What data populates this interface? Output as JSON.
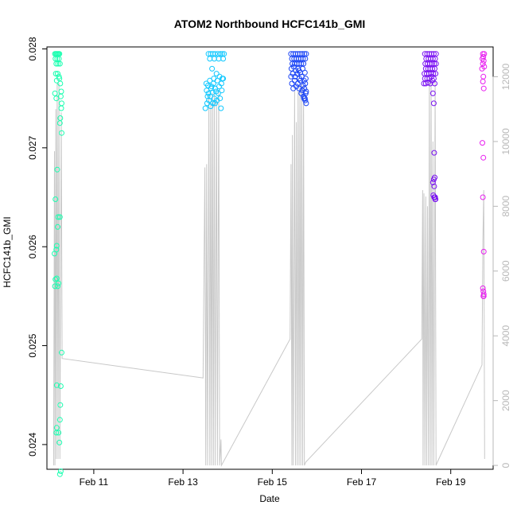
{
  "chart_data": {
    "type": "scatter",
    "title": "ATOM2 Northbound HCFC141b_GMI",
    "xlabel": "Date",
    "ylabel": "HCFC141b_GMI",
    "x_unit": "day of February",
    "xlim": [
      9.95,
      19.95
    ],
    "ylim": [
      0.02375,
      0.02802
    ],
    "y2lim": [
      -120,
      12920
    ],
    "x_ticks": [
      {
        "value": 11,
        "label": "Feb 11"
      },
      {
        "value": 13,
        "label": "Feb 13"
      },
      {
        "value": 15,
        "label": "Feb 15"
      },
      {
        "value": 17,
        "label": "Feb 17"
      },
      {
        "value": 19,
        "label": "Feb 19"
      }
    ],
    "y_ticks": [
      {
        "value": 0.024,
        "label": "0.024"
      },
      {
        "value": 0.025,
        "label": "0.025"
      },
      {
        "value": 0.026,
        "label": "0.026"
      },
      {
        "value": 0.027,
        "label": "0.027"
      },
      {
        "value": 0.028,
        "label": "0.028"
      }
    ],
    "y2_ticks": [
      {
        "value": 0,
        "label": "0"
      },
      {
        "value": 2000,
        "label": "2000"
      },
      {
        "value": 4000,
        "label": "4000"
      },
      {
        "value": 6000,
        "label": "6000"
      },
      {
        "value": 8000,
        "label": "8000"
      },
      {
        "value": 10000,
        "label": "10000"
      },
      {
        "value": 12000,
        "label": "12000"
      }
    ],
    "colors": {
      "flight1": "#1affb0",
      "flight2": "#10c8ff",
      "flight3": "#1a44f5",
      "flight4": "#7a12f2",
      "flight5": "#e81ef0",
      "altitude_line": "#c8c8c8",
      "right_axis": "#b8b8b8"
    },
    "series": [
      {
        "color_key": "flight1",
        "points": [
          [
            10.13,
            0.02795
          ],
          [
            10.15,
            0.02795
          ],
          [
            10.17,
            0.02795
          ],
          [
            10.19,
            0.02795
          ],
          [
            10.21,
            0.02795
          ],
          [
            10.23,
            0.02795
          ],
          [
            10.14,
            0.0279
          ],
          [
            10.18,
            0.0279
          ],
          [
            10.22,
            0.0279
          ],
          [
            10.16,
            0.02785
          ],
          [
            10.2,
            0.02785
          ],
          [
            10.24,
            0.02785
          ],
          [
            10.15,
            0.02775
          ],
          [
            10.19,
            0.02775
          ],
          [
            10.22,
            0.02772
          ],
          [
            10.23,
            0.0277
          ],
          [
            10.17,
            0.02768
          ],
          [
            10.25,
            0.02765
          ],
          [
            10.27,
            0.02757
          ],
          [
            10.13,
            0.02755
          ],
          [
            10.26,
            0.02752
          ],
          [
            10.16,
            0.0275
          ],
          [
            10.28,
            0.02745
          ],
          [
            10.27,
            0.0274
          ],
          [
            10.25,
            0.0273
          ],
          [
            10.24,
            0.02725
          ],
          [
            10.28,
            0.02715
          ],
          [
            10.18,
            0.02678
          ],
          [
            10.14,
            0.02648
          ],
          [
            10.2,
            0.0263
          ],
          [
            10.24,
            0.0263
          ],
          [
            10.19,
            0.0262
          ],
          [
            10.17,
            0.02601
          ],
          [
            10.16,
            0.02597
          ],
          [
            10.12,
            0.02593
          ],
          [
            10.17,
            0.02568
          ],
          [
            10.14,
            0.02567
          ],
          [
            10.21,
            0.02563
          ],
          [
            10.13,
            0.0256
          ],
          [
            10.19,
            0.0256
          ],
          [
            10.28,
            0.02493
          ],
          [
            10.17,
            0.0246
          ],
          [
            10.26,
            0.02459
          ],
          [
            10.25,
            0.0244
          ],
          [
            10.24,
            0.02425
          ],
          [
            10.17,
            0.02417
          ],
          [
            10.16,
            0.02412
          ],
          [
            10.21,
            0.02412
          ],
          [
            10.23,
            0.02402
          ],
          [
            10.26,
            0.02373
          ],
          [
            10.24,
            0.0237
          ]
        ]
      },
      {
        "color_key": "flight2",
        "points": [
          [
            13.57,
            0.02795
          ],
          [
            13.62,
            0.02795
          ],
          [
            13.67,
            0.02795
          ],
          [
            13.72,
            0.02795
          ],
          [
            13.78,
            0.02795
          ],
          [
            13.84,
            0.02795
          ],
          [
            13.88,
            0.02795
          ],
          [
            13.92,
            0.02795
          ],
          [
            13.6,
            0.0279
          ],
          [
            13.7,
            0.0279
          ],
          [
            13.8,
            0.0279
          ],
          [
            13.9,
            0.0279
          ],
          [
            13.65,
            0.0278
          ],
          [
            13.75,
            0.02775
          ],
          [
            13.82,
            0.02772
          ],
          [
            13.88,
            0.0277
          ],
          [
            13.52,
            0.02765
          ],
          [
            13.56,
            0.02763
          ],
          [
            13.6,
            0.02768
          ],
          [
            13.64,
            0.02762
          ],
          [
            13.68,
            0.02765
          ],
          [
            13.72,
            0.0276
          ],
          [
            13.77,
            0.02768
          ],
          [
            13.81,
            0.02762
          ],
          [
            13.86,
            0.02765
          ],
          [
            13.9,
            0.0277
          ],
          [
            13.53,
            0.02758
          ],
          [
            13.57,
            0.02755
          ],
          [
            13.61,
            0.02752
          ],
          [
            13.66,
            0.02756
          ],
          [
            13.7,
            0.0275
          ],
          [
            13.74,
            0.02757
          ],
          [
            13.79,
            0.02755
          ],
          [
            13.83,
            0.0275
          ],
          [
            13.87,
            0.02758
          ],
          [
            13.54,
            0.02745
          ],
          [
            13.58,
            0.02748
          ],
          [
            13.62,
            0.02742
          ],
          [
            13.67,
            0.02745
          ],
          [
            13.72,
            0.02745
          ],
          [
            13.76,
            0.02748
          ],
          [
            13.85,
            0.0274
          ],
          [
            13.5,
            0.0274
          ],
          [
            13.55,
            0.02752
          ],
          [
            13.63,
            0.0276
          ],
          [
            13.69,
            0.0277
          ]
        ]
      },
      {
        "color_key": "flight3",
        "points": [
          [
            15.42,
            0.02795
          ],
          [
            15.47,
            0.02795
          ],
          [
            15.52,
            0.02795
          ],
          [
            15.57,
            0.02795
          ],
          [
            15.62,
            0.02795
          ],
          [
            15.67,
            0.02795
          ],
          [
            15.72,
            0.02795
          ],
          [
            15.76,
            0.02795
          ],
          [
            15.44,
            0.0279
          ],
          [
            15.49,
            0.0279
          ],
          [
            15.54,
            0.0279
          ],
          [
            15.59,
            0.0279
          ],
          [
            15.64,
            0.0279
          ],
          [
            15.69,
            0.0279
          ],
          [
            15.74,
            0.0279
          ],
          [
            15.45,
            0.02785
          ],
          [
            15.5,
            0.02785
          ],
          [
            15.55,
            0.02785
          ],
          [
            15.6,
            0.02785
          ],
          [
            15.65,
            0.02785
          ],
          [
            15.7,
            0.02785
          ],
          [
            15.43,
            0.0278
          ],
          [
            15.48,
            0.02782
          ],
          [
            15.53,
            0.02778
          ],
          [
            15.58,
            0.0278
          ],
          [
            15.63,
            0.02776
          ],
          [
            15.68,
            0.0278
          ],
          [
            15.73,
            0.02776
          ],
          [
            15.46,
            0.02775
          ],
          [
            15.51,
            0.02772
          ],
          [
            15.56,
            0.02775
          ],
          [
            15.61,
            0.0277
          ],
          [
            15.66,
            0.02772
          ],
          [
            15.71,
            0.02768
          ],
          [
            15.75,
            0.0277
          ],
          [
            15.44,
            0.02765
          ],
          [
            15.5,
            0.02768
          ],
          [
            15.57,
            0.02765
          ],
          [
            15.63,
            0.02768
          ],
          [
            15.69,
            0.02763
          ],
          [
            15.74,
            0.02765
          ],
          [
            15.47,
            0.0276
          ],
          [
            15.54,
            0.02762
          ],
          [
            15.6,
            0.0276
          ],
          [
            15.67,
            0.02758
          ],
          [
            15.72,
            0.0276
          ],
          [
            15.65,
            0.02755
          ],
          [
            15.7,
            0.02752
          ],
          [
            15.73,
            0.0275
          ],
          [
            15.76,
            0.02757
          ],
          [
            15.75,
            0.02755
          ],
          [
            15.71,
            0.0275
          ],
          [
            15.74,
            0.02748
          ],
          [
            15.76,
            0.02745
          ],
          [
            15.42,
            0.02772
          ],
          [
            15.6,
            0.02778
          ]
        ]
      },
      {
        "color_key": "flight4",
        "points": [
          [
            18.42,
            0.02795
          ],
          [
            18.47,
            0.02795
          ],
          [
            18.52,
            0.02795
          ],
          [
            18.57,
            0.02795
          ],
          [
            18.62,
            0.02795
          ],
          [
            18.67,
            0.02795
          ],
          [
            18.45,
            0.0279
          ],
          [
            18.5,
            0.0279
          ],
          [
            18.55,
            0.0279
          ],
          [
            18.6,
            0.0279
          ],
          [
            18.65,
            0.0279
          ],
          [
            18.43,
            0.02785
          ],
          [
            18.48,
            0.02785
          ],
          [
            18.53,
            0.02785
          ],
          [
            18.58,
            0.02785
          ],
          [
            18.63,
            0.02785
          ],
          [
            18.67,
            0.02785
          ],
          [
            18.44,
            0.0278
          ],
          [
            18.49,
            0.0278
          ],
          [
            18.54,
            0.0278
          ],
          [
            18.59,
            0.0278
          ],
          [
            18.64,
            0.0278
          ],
          [
            18.41,
            0.02775
          ],
          [
            18.46,
            0.02775
          ],
          [
            18.51,
            0.02775
          ],
          [
            18.56,
            0.02775
          ],
          [
            18.61,
            0.02775
          ],
          [
            18.66,
            0.02775
          ],
          [
            18.42,
            0.0277
          ],
          [
            18.47,
            0.0277
          ],
          [
            18.52,
            0.0277
          ],
          [
            18.57,
            0.02772
          ],
          [
            18.62,
            0.0277
          ],
          [
            18.4,
            0.02765
          ],
          [
            18.44,
            0.02765
          ],
          [
            18.49,
            0.02766
          ],
          [
            18.54,
            0.02765
          ],
          [
            18.59,
            0.02768
          ],
          [
            18.64,
            0.02765
          ],
          [
            18.6,
            0.02755
          ],
          [
            18.62,
            0.02745
          ],
          [
            18.63,
            0.02695
          ],
          [
            18.64,
            0.0267
          ],
          [
            18.62,
            0.02668
          ],
          [
            18.6,
            0.02665
          ],
          [
            18.63,
            0.02661
          ],
          [
            18.61,
            0.02652
          ],
          [
            18.63,
            0.0265
          ],
          [
            18.64,
            0.0265
          ],
          [
            18.65,
            0.0265
          ],
          [
            18.66,
            0.02648
          ],
          [
            18.65,
            0.02648
          ]
        ]
      },
      {
        "color_key": "flight5",
        "points": [
          [
            19.72,
            0.02795
          ],
          [
            19.75,
            0.02795
          ],
          [
            19.73,
            0.02792
          ],
          [
            19.71,
            0.0279
          ],
          [
            19.74,
            0.02788
          ],
          [
            19.72,
            0.02785
          ],
          [
            19.75,
            0.02782
          ],
          [
            19.7,
            0.0278
          ],
          [
            19.73,
            0.02772
          ],
          [
            19.72,
            0.02767
          ],
          [
            19.74,
            0.0276
          ],
          [
            19.71,
            0.02705
          ],
          [
            19.73,
            0.0269
          ],
          [
            19.72,
            0.0265
          ],
          [
            19.74,
            0.02595
          ],
          [
            19.72,
            0.02558
          ],
          [
            19.73,
            0.02555
          ],
          [
            19.74,
            0.02552
          ],
          [
            19.73,
            0.0255
          ],
          [
            19.74,
            0.0255
          ]
        ]
      }
    ],
    "altitude_line": [
      [
        10.1,
        0
      ],
      [
        10.12,
        9700
      ],
      [
        10.13,
        0
      ],
      [
        10.15,
        11000
      ],
      [
        10.16,
        200
      ],
      [
        10.18,
        11800
      ],
      [
        10.2,
        200
      ],
      [
        10.22,
        11800
      ],
      [
        10.24,
        200
      ],
      [
        10.27,
        10900
      ],
      [
        10.29,
        3300
      ],
      [
        13.45,
        2700
      ],
      [
        13.49,
        9200
      ],
      [
        13.51,
        0
      ],
      [
        13.53,
        9300
      ],
      [
        13.55,
        0
      ],
      [
        13.58,
        11400
      ],
      [
        13.6,
        0
      ],
      [
        13.62,
        11200
      ],
      [
        13.64,
        0
      ],
      [
        13.66,
        11500
      ],
      [
        13.68,
        0
      ],
      [
        13.7,
        11500
      ],
      [
        13.72,
        0
      ],
      [
        13.75,
        11300
      ],
      [
        13.77,
        0
      ],
      [
        13.8,
        11600
      ],
      [
        13.82,
        0
      ],
      [
        13.85,
        800
      ],
      [
        13.86,
        0
      ],
      [
        15.4,
        3900
      ],
      [
        15.42,
        9300
      ],
      [
        15.44,
        0
      ],
      [
        15.45,
        10200
      ],
      [
        15.47,
        0
      ],
      [
        15.5,
        11600
      ],
      [
        15.52,
        0
      ],
      [
        15.54,
        10600
      ],
      [
        15.56,
        0
      ],
      [
        15.58,
        11600
      ],
      [
        15.6,
        0
      ],
      [
        15.62,
        11700
      ],
      [
        15.64,
        0
      ],
      [
        15.66,
        11800
      ],
      [
        15.68,
        0
      ],
      [
        15.7,
        11700
      ],
      [
        15.72,
        0
      ],
      [
        15.75,
        100
      ],
      [
        18.35,
        3900
      ],
      [
        18.37,
        8500
      ],
      [
        18.38,
        0
      ],
      [
        18.4,
        8400
      ],
      [
        18.42,
        0
      ],
      [
        18.44,
        8300
      ],
      [
        18.46,
        0
      ],
      [
        18.48,
        8000
      ],
      [
        18.5,
        0
      ],
      [
        18.52,
        12000
      ],
      [
        18.54,
        0
      ],
      [
        18.56,
        11900
      ],
      [
        18.58,
        0
      ],
      [
        18.6,
        10000
      ],
      [
        18.62,
        0
      ],
      [
        18.65,
        11900
      ],
      [
        18.67,
        0
      ],
      [
        18.7,
        100
      ],
      [
        19.7,
        3100
      ],
      [
        19.72,
        6900
      ],
      [
        19.74,
        8500
      ],
      [
        19.76,
        200
      ]
    ]
  }
}
